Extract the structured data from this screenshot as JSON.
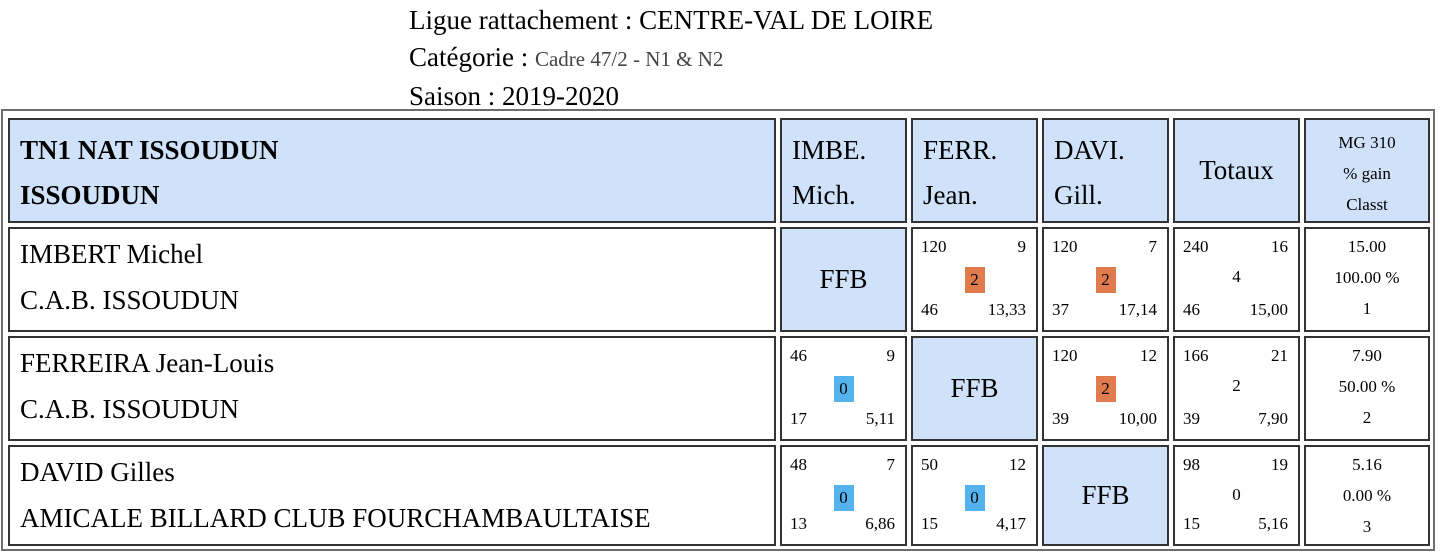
{
  "header": {
    "ligue": "Ligue rattachement : CENTRE-VAL DE LOIRE",
    "categorie_label": "Catégorie :",
    "categorie_value": "Cadre 47/2 - N1 & N2",
    "saison": "Saison : 2019-2020"
  },
  "table": {
    "team_line1": "TN1 NAT ISSOUDUN",
    "team_line2": "ISSOUDUN",
    "columns": [
      {
        "line1": "IMBE.",
        "line2": "Mich."
      },
      {
        "line1": "FERR.",
        "line2": "Jean."
      },
      {
        "line1": "DAVI.",
        "line2": "Gill."
      }
    ],
    "totaux_label": "Totaux",
    "mg_label": "MG 310",
    "gain_label": "% gain",
    "classt_label": "Classt",
    "ffb_label": "FFB",
    "colors": {
      "header_bg": "#cfe2fa",
      "win_badge": "#e07b4e",
      "loss_badge": "#54b3ef"
    },
    "rows": [
      {
        "name": "IMBERT Michel",
        "club": "C.A.B. ISSOUDUN",
        "matches": [
          null,
          {
            "points": "120",
            "innings_top": "9",
            "result": "2",
            "reprises": "46",
            "average": "13,33"
          },
          {
            "points": "120",
            "innings_top": "7",
            "result": "2",
            "reprises": "37",
            "average": "17,14"
          }
        ],
        "totals": {
          "points": "240",
          "series": "16",
          "mid": "4",
          "reprises": "46",
          "average": "15,00"
        },
        "summary": {
          "mg": "15.00",
          "gain": "100.00 %",
          "rank": "1"
        }
      },
      {
        "name": "FERREIRA Jean-Louis",
        "club": "C.A.B. ISSOUDUN",
        "matches": [
          {
            "points": "46",
            "innings_top": "9",
            "result": "0",
            "reprises": "17",
            "average": "5,11"
          },
          null,
          {
            "points": "120",
            "innings_top": "12",
            "result": "2",
            "reprises": "39",
            "average": "10,00"
          }
        ],
        "totals": {
          "points": "166",
          "series": "21",
          "mid": "2",
          "reprises": "39",
          "average": "7,90"
        },
        "summary": {
          "mg": "7.90",
          "gain": "50.00 %",
          "rank": "2"
        }
      },
      {
        "name": "DAVID Gilles",
        "club": "AMICALE BILLARD CLUB FOURCHAMBAULTAISE",
        "matches": [
          {
            "points": "48",
            "innings_top": "7",
            "result": "0",
            "reprises": "13",
            "average": "6,86"
          },
          {
            "points": "50",
            "innings_top": "12",
            "result": "0",
            "reprises": "15",
            "average": "4,17"
          },
          null
        ],
        "totals": {
          "points": "98",
          "series": "19",
          "mid": "0",
          "reprises": "15",
          "average": "5,16"
        },
        "summary": {
          "mg": "5.16",
          "gain": "0.00 %",
          "rank": "3"
        }
      }
    ]
  }
}
